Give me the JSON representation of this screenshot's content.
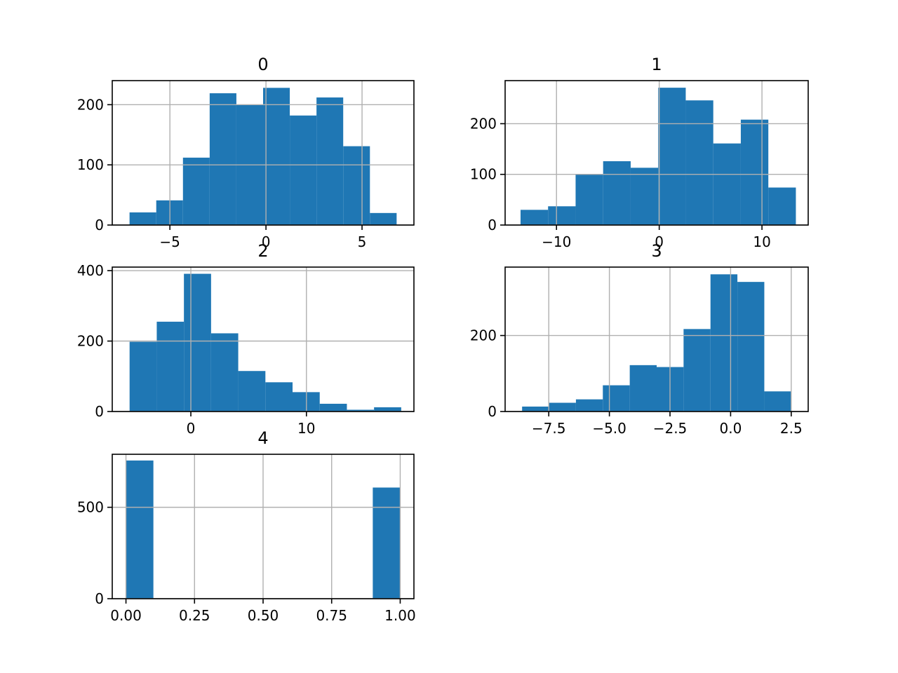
{
  "chart_data": [
    {
      "type": "bar",
      "title": "0",
      "xlabel": "",
      "ylabel": "",
      "grid": true,
      "color": "#1f77b4",
      "bin_edges": [
        -7.1,
        -5.71,
        -4.32,
        -2.93,
        -1.54,
        -0.15,
        1.24,
        2.63,
        4.02,
        5.41,
        6.8
      ],
      "values": [
        21,
        41,
        112,
        219,
        200,
        228,
        182,
        212,
        131,
        20
      ],
      "xlim": [
        -8.0,
        7.7
      ],
      "ylim": [
        0,
        240
      ],
      "xticks": [
        -5,
        0,
        5
      ],
      "xtick_labels": [
        "−5",
        "0",
        "5"
      ],
      "yticks": [
        0,
        100,
        200
      ],
      "ytick_labels": [
        "0",
        "100",
        "200"
      ]
    },
    {
      "type": "bar",
      "title": "1",
      "xlabel": "",
      "ylabel": "",
      "grid": true,
      "color": "#1f77b4",
      "bin_edges": [
        -13.5,
        -10.82,
        -8.14,
        -5.46,
        -2.78,
        -0.1,
        2.58,
        5.26,
        7.94,
        10.62,
        13.3
      ],
      "values": [
        30,
        37,
        100,
        126,
        113,
        271,
        246,
        161,
        208,
        74
      ],
      "xlim": [
        -15.0,
        14.5
      ],
      "ylim": [
        0,
        285
      ],
      "xticks": [
        -10,
        0,
        10
      ],
      "xtick_labels": [
        "−10",
        "0",
        "10"
      ],
      "yticks": [
        0,
        100,
        200
      ],
      "ytick_labels": [
        "0",
        "100",
        "200"
      ]
    },
    {
      "type": "bar",
      "title": "2",
      "xlabel": "",
      "ylabel": "",
      "grid": true,
      "color": "#1f77b4",
      "bin_edges": [
        -5.3,
        -2.95,
        -0.6,
        1.75,
        4.1,
        6.45,
        8.8,
        11.15,
        13.5,
        15.85,
        18.2
      ],
      "values": [
        198,
        255,
        391,
        222,
        115,
        83,
        55,
        22,
        5,
        12
      ],
      "xlim": [
        -6.8,
        19.3
      ],
      "ylim": [
        0,
        410
      ],
      "xticks": [
        0,
        10
      ],
      "xtick_labels": [
        "0",
        "10"
      ],
      "yticks": [
        0,
        200,
        400
      ],
      "ytick_labels": [
        "0",
        "200",
        "400"
      ]
    },
    {
      "type": "bar",
      "title": "3",
      "xlabel": "",
      "ylabel": "",
      "grid": true,
      "color": "#1f77b4",
      "bin_edges": [
        -8.6,
        -7.49,
        -6.38,
        -5.27,
        -4.16,
        -3.05,
        -1.94,
        -0.83,
        0.28,
        1.39,
        2.5
      ],
      "values": [
        13,
        23,
        32,
        69,
        122,
        117,
        217,
        361,
        341,
        53
      ],
      "xlim": [
        -9.3,
        3.2
      ],
      "ylim": [
        0,
        380
      ],
      "xticks": [
        -7.5,
        -5.0,
        -2.5,
        0.0,
        2.5
      ],
      "xtick_labels": [
        "−7.5",
        "−5.0",
        "−2.5",
        "0.0",
        "2.5"
      ],
      "yticks": [
        0,
        200
      ],
      "ytick_labels": [
        "0",
        "200"
      ]
    },
    {
      "type": "bar",
      "title": "4",
      "xlabel": "",
      "ylabel": "",
      "grid": true,
      "color": "#1f77b4",
      "bin_edges": [
        0.0,
        0.1,
        0.2,
        0.3,
        0.4,
        0.5,
        0.6,
        0.7,
        0.8,
        0.9,
        1.0
      ],
      "values": [
        756,
        0,
        0,
        0,
        0,
        0,
        0,
        0,
        0,
        608
      ],
      "xlim": [
        -0.05,
        1.05
      ],
      "ylim": [
        0,
        790
      ],
      "xticks": [
        0.0,
        0.25,
        0.5,
        0.75,
        1.0
      ],
      "xtick_labels": [
        "0.00",
        "0.25",
        "0.50",
        "0.75",
        "1.00"
      ],
      "yticks": [
        0,
        500
      ],
      "ytick_labels": [
        "0",
        "500"
      ]
    }
  ]
}
